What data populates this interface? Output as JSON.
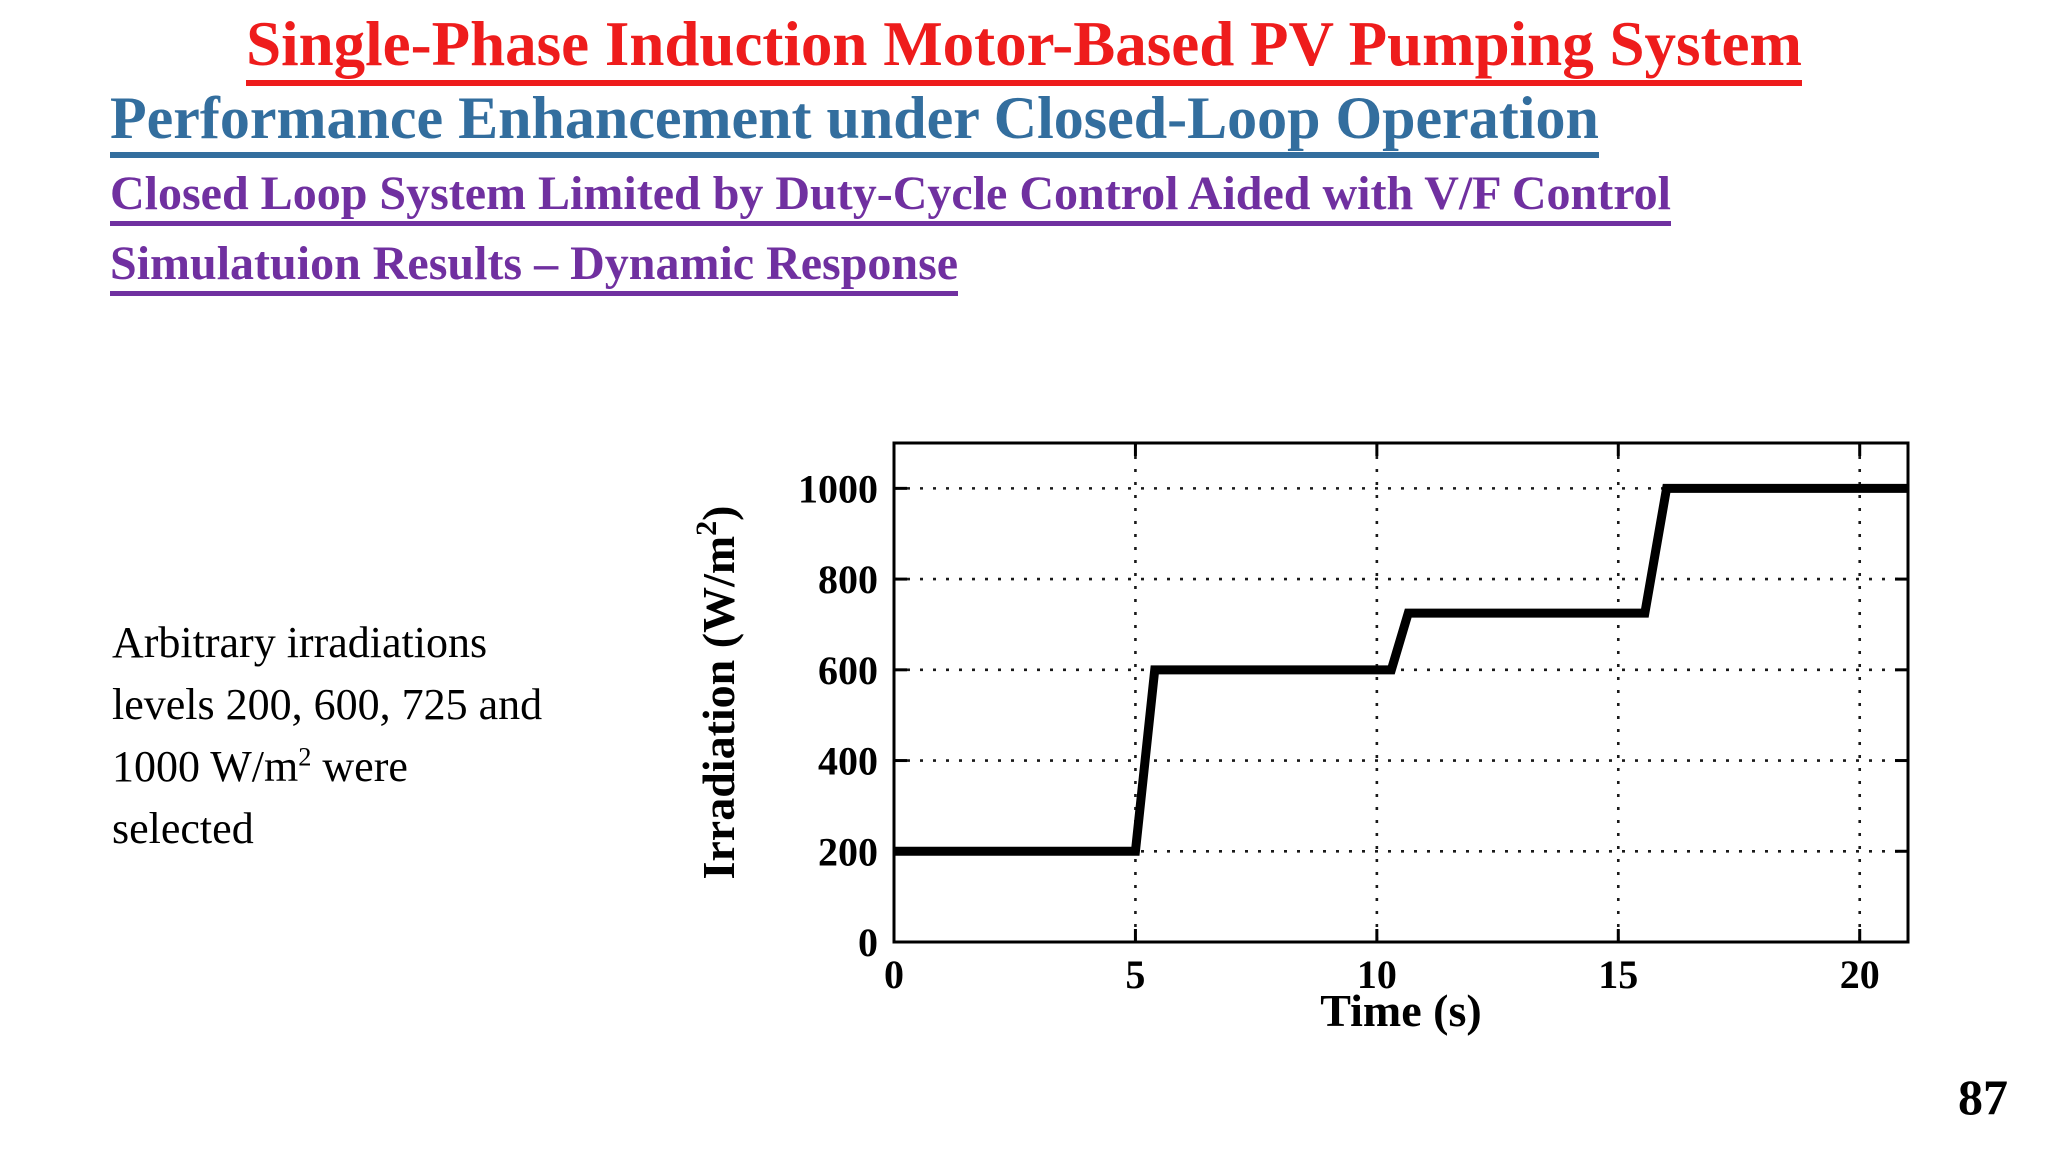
{
  "slide": {
    "title": "Single-Phase Induction Motor-Based PV Pumping System",
    "subtitle": "Performance Enhancement under Closed-Loop Operation",
    "section_heading": "Closed Loop System Limited by Duty-Cycle Control Aided with V/F Control",
    "sub_heading": "Simulatuion Results – Dynamic Response",
    "body": {
      "line1": "Arbitrary irradiations",
      "line2": "levels 200, 600, 725 and",
      "line3_pre": "1000 W/m",
      "line3_sup": "2",
      "line3_post": " were",
      "line4": "selected"
    },
    "page_number": "87"
  },
  "colors": {
    "title_red": "#EE1C1C",
    "subtitle_blue": "#336E9E",
    "heading_purple": "#7030A0",
    "text_black": "#000000",
    "line_black": "#000000"
  },
  "chart_data": {
    "type": "line",
    "title": "",
    "xlabel": "Time (s)",
    "ylabel": "Irradiation (W/m²)",
    "ylabel_pre": "Irradiation (W/m",
    "ylabel_sup": "2",
    "ylabel_post": ")",
    "xlim": [
      0,
      21
    ],
    "ylim": [
      0,
      1100
    ],
    "xticks": [
      0,
      5,
      10,
      15,
      20
    ],
    "yticks": [
      0,
      200,
      400,
      600,
      800,
      1000
    ],
    "grid": "dotted",
    "legend": "none",
    "irradiation_levels": [
      200,
      600,
      725,
      1000
    ],
    "series": [
      {
        "name": "irradiation-step-profile",
        "color": "#000000",
        "points": [
          [
            0,
            200
          ],
          [
            5.0,
            200
          ],
          [
            5.4,
            600
          ],
          [
            10.3,
            600
          ],
          [
            10.65,
            725
          ],
          [
            15.55,
            725
          ],
          [
            16.0,
            1000
          ],
          [
            21,
            1000
          ]
        ]
      }
    ]
  }
}
